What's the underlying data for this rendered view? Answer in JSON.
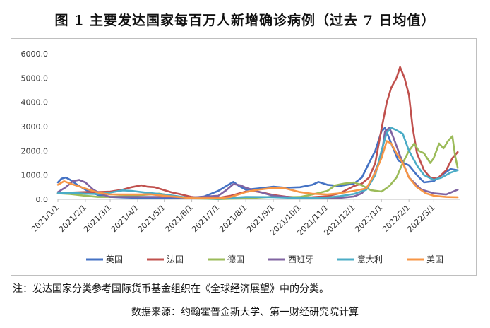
{
  "figure_title": "图 1  主要发达国家每百万人新增确诊病例（过去 7 日均值）",
  "note": "注：发达国家分类参考国际货币基金组织在《全球经济展望》中的分类。",
  "source": "数据来源：约翰霍普金斯大学、第一财经研究院计算",
  "chart_data": {
    "type": "line",
    "title": "",
    "xlabel": "",
    "ylabel": "",
    "ylim": [
      0,
      6000
    ],
    "yticks": [
      "0.0",
      "1000.0",
      "2000.0",
      "3000.0",
      "4000.0",
      "5000.0",
      "6000.0"
    ],
    "x_start": "2021-01-01",
    "x_end": "2022-03-31",
    "xticks": [
      "2021/1/1",
      "2021/2/1",
      "2021/3/1",
      "2021/4/1",
      "2021/5/1",
      "2021/6/1",
      "2021/7/1",
      "2021/8/1",
      "2021/9/1",
      "2021/10/1",
      "2021/11/1",
      "2021/12/1",
      "2022/1/1",
      "2022/2/1",
      "2022/3/1"
    ],
    "grid": false,
    "legend_position": "bottom",
    "series": [
      {
        "name": "英国",
        "color": "#4472c4",
        "points": [
          [
            "2021-01-01",
            700
          ],
          [
            "2021-01-05",
            850
          ],
          [
            "2021-01-10",
            900
          ],
          [
            "2021-01-15",
            800
          ],
          [
            "2021-01-22",
            620
          ],
          [
            "2021-02-01",
            400
          ],
          [
            "2021-02-15",
            180
          ],
          [
            "2021-03-01",
            100
          ],
          [
            "2021-03-15",
            80
          ],
          [
            "2021-04-01",
            60
          ],
          [
            "2021-05-01",
            40
          ],
          [
            "2021-06-01",
            60
          ],
          [
            "2021-06-15",
            120
          ],
          [
            "2021-07-01",
            350
          ],
          [
            "2021-07-10",
            550
          ],
          [
            "2021-07-18",
            720
          ],
          [
            "2021-07-24",
            560
          ],
          [
            "2021-08-01",
            400
          ],
          [
            "2021-08-15",
            450
          ],
          [
            "2021-09-01",
            520
          ],
          [
            "2021-09-15",
            480
          ],
          [
            "2021-10-01",
            500
          ],
          [
            "2021-10-15",
            600
          ],
          [
            "2021-10-22",
            720
          ],
          [
            "2021-11-01",
            600
          ],
          [
            "2021-11-15",
            550
          ],
          [
            "2021-12-01",
            650
          ],
          [
            "2021-12-10",
            900
          ],
          [
            "2021-12-18",
            1500
          ],
          [
            "2021-12-25",
            2000
          ],
          [
            "2022-01-01",
            2800
          ],
          [
            "2022-01-05",
            2950
          ],
          [
            "2022-01-12",
            2300
          ],
          [
            "2022-01-20",
            1600
          ],
          [
            "2022-02-01",
            1400
          ],
          [
            "2022-02-10",
            1000
          ],
          [
            "2022-02-18",
            700
          ],
          [
            "2022-03-01",
            750
          ],
          [
            "2022-03-10",
            1000
          ],
          [
            "2022-03-20",
            1250
          ],
          [
            "2022-03-28",
            1200
          ]
        ]
      },
      {
        "name": "法国",
        "color": "#c0504d",
        "points": [
          [
            "2021-01-01",
            250
          ],
          [
            "2021-01-15",
            280
          ],
          [
            "2021-02-01",
            300
          ],
          [
            "2021-02-15",
            300
          ],
          [
            "2021-03-01",
            320
          ],
          [
            "2021-03-15",
            400
          ],
          [
            "2021-03-25",
            500
          ],
          [
            "2021-04-05",
            580
          ],
          [
            "2021-04-12",
            520
          ],
          [
            "2021-04-20",
            500
          ],
          [
            "2021-05-01",
            380
          ],
          [
            "2021-05-10",
            280
          ],
          [
            "2021-05-18",
            220
          ],
          [
            "2021-06-01",
            100
          ],
          [
            "2021-06-15",
            50
          ],
          [
            "2021-07-01",
            60
          ],
          [
            "2021-07-15",
            150
          ],
          [
            "2021-08-01",
            320
          ],
          [
            "2021-08-10",
            340
          ],
          [
            "2021-08-20",
            280
          ],
          [
            "2021-09-01",
            180
          ],
          [
            "2021-09-15",
            110
          ],
          [
            "2021-10-01",
            80
          ],
          [
            "2021-10-15",
            90
          ],
          [
            "2021-11-01",
            130
          ],
          [
            "2021-11-15",
            250
          ],
          [
            "2021-12-01",
            550
          ],
          [
            "2021-12-10",
            650
          ],
          [
            "2021-12-18",
            900
          ],
          [
            "2021-12-25",
            1500
          ],
          [
            "2022-01-01",
            2900
          ],
          [
            "2022-01-07",
            4000
          ],
          [
            "2022-01-12",
            4600
          ],
          [
            "2022-01-18",
            5000
          ],
          [
            "2022-01-22",
            5450
          ],
          [
            "2022-01-27",
            5000
          ],
          [
            "2022-02-01",
            4300
          ],
          [
            "2022-02-05",
            3000
          ],
          [
            "2022-02-10",
            1900
          ],
          [
            "2022-02-18",
            1200
          ],
          [
            "2022-02-25",
            900
          ],
          [
            "2022-03-05",
            850
          ],
          [
            "2022-03-15",
            1200
          ],
          [
            "2022-03-22",
            1700
          ],
          [
            "2022-03-28",
            1950
          ]
        ]
      },
      {
        "name": "德国",
        "color": "#9bbb59",
        "points": [
          [
            "2021-01-01",
            250
          ],
          [
            "2021-01-15",
            220
          ],
          [
            "2021-02-01",
            150
          ],
          [
            "2021-02-15",
            100
          ],
          [
            "2021-03-01",
            100
          ],
          [
            "2021-03-15",
            130
          ],
          [
            "2021-04-01",
            170
          ],
          [
            "2021-04-15",
            200
          ],
          [
            "2021-04-25",
            240
          ],
          [
            "2021-05-10",
            140
          ],
          [
            "2021-06-01",
            40
          ],
          [
            "2021-07-01",
            10
          ],
          [
            "2021-08-01",
            40
          ],
          [
            "2021-09-01",
            110
          ],
          [
            "2021-09-15",
            90
          ],
          [
            "2021-10-01",
            100
          ],
          [
            "2021-10-15",
            200
          ],
          [
            "2021-11-01",
            350
          ],
          [
            "2021-11-10",
            580
          ],
          [
            "2021-11-20",
            650
          ],
          [
            "2021-12-01",
            700
          ],
          [
            "2021-12-10",
            580
          ],
          [
            "2021-12-20",
            380
          ],
          [
            "2022-01-01",
            320
          ],
          [
            "2022-01-10",
            550
          ],
          [
            "2022-01-18",
            900
          ],
          [
            "2022-01-25",
            1500
          ],
          [
            "2022-02-01",
            2000
          ],
          [
            "2022-02-07",
            2300
          ],
          [
            "2022-02-12",
            2000
          ],
          [
            "2022-02-18",
            1900
          ],
          [
            "2022-02-25",
            1500
          ],
          [
            "2022-03-01",
            1700
          ],
          [
            "2022-03-07",
            2300
          ],
          [
            "2022-03-12",
            2100
          ],
          [
            "2022-03-17",
            2400
          ],
          [
            "2022-03-22",
            2600
          ],
          [
            "2022-03-25",
            1800
          ],
          [
            "2022-03-28",
            1300
          ]
        ]
      },
      {
        "name": "西班牙",
        "color": "#8064a2",
        "points": [
          [
            "2021-01-01",
            300
          ],
          [
            "2021-01-10",
            500
          ],
          [
            "2021-01-18",
            750
          ],
          [
            "2021-01-25",
            800
          ],
          [
            "2021-02-01",
            700
          ],
          [
            "2021-02-10",
            400
          ],
          [
            "2021-02-20",
            200
          ],
          [
            "2021-03-01",
            100
          ],
          [
            "2021-04-01",
            100
          ],
          [
            "2021-05-01",
            100
          ],
          [
            "2021-06-01",
            80
          ],
          [
            "2021-07-01",
            150
          ],
          [
            "2021-07-10",
            380
          ],
          [
            "2021-07-18",
            630
          ],
          [
            "2021-07-26",
            580
          ],
          [
            "2021-08-01",
            480
          ],
          [
            "2021-08-15",
            320
          ],
          [
            "2021-09-01",
            150
          ],
          [
            "2021-10-01",
            50
          ],
          [
            "2021-11-01",
            40
          ],
          [
            "2021-11-15",
            60
          ],
          [
            "2021-12-01",
            120
          ],
          [
            "2021-12-10",
            250
          ],
          [
            "2021-12-20",
            700
          ],
          [
            "2022-01-01",
            1800
          ],
          [
            "2022-01-05",
            2800
          ],
          [
            "2022-01-10",
            2950
          ],
          [
            "2022-01-15",
            2500
          ],
          [
            "2022-01-22",
            1800
          ],
          [
            "2022-02-01",
            900
          ],
          [
            "2022-02-15",
            400
          ],
          [
            "2022-03-01",
            250
          ],
          [
            "2022-03-15",
            200
          ],
          [
            "2022-03-28",
            400
          ]
        ]
      },
      {
        "name": "意大利",
        "color": "#4bacc6",
        "points": [
          [
            "2021-01-01",
            250
          ],
          [
            "2021-01-15",
            280
          ],
          [
            "2021-02-01",
            230
          ],
          [
            "2021-02-15",
            220
          ],
          [
            "2021-03-01",
            280
          ],
          [
            "2021-03-15",
            370
          ],
          [
            "2021-03-25",
            350
          ],
          [
            "2021-04-10",
            280
          ],
          [
            "2021-05-01",
            200
          ],
          [
            "2021-06-01",
            50
          ],
          [
            "2021-07-01",
            20
          ],
          [
            "2021-07-15",
            60
          ],
          [
            "2021-08-01",
            100
          ],
          [
            "2021-09-01",
            90
          ],
          [
            "2021-10-01",
            50
          ],
          [
            "2021-11-01",
            80
          ],
          [
            "2021-11-15",
            130
          ],
          [
            "2021-12-01",
            220
          ],
          [
            "2021-12-15",
            400
          ],
          [
            "2021-12-25",
            1000
          ],
          [
            "2022-01-01",
            2000
          ],
          [
            "2022-01-07",
            2750
          ],
          [
            "2022-01-12",
            2950
          ],
          [
            "2022-01-18",
            2850
          ],
          [
            "2022-01-25",
            2700
          ],
          [
            "2022-02-01",
            2000
          ],
          [
            "2022-02-10",
            1400
          ],
          [
            "2022-02-18",
            1000
          ],
          [
            "2022-03-01",
            800
          ],
          [
            "2022-03-10",
            900
          ],
          [
            "2022-03-20",
            1100
          ],
          [
            "2022-03-28",
            1200
          ]
        ]
      },
      {
        "name": "美国",
        "color": "#f79646",
        "points": [
          [
            "2021-01-01",
            600
          ],
          [
            "2021-01-08",
            750
          ],
          [
            "2021-01-15",
            650
          ],
          [
            "2021-02-01",
            450
          ],
          [
            "2021-02-15",
            280
          ],
          [
            "2021-03-01",
            200
          ],
          [
            "2021-04-01",
            200
          ],
          [
            "2021-04-15",
            210
          ],
          [
            "2021-05-01",
            150
          ],
          [
            "2021-06-01",
            50
          ],
          [
            "2021-07-01",
            40
          ],
          [
            "2021-07-15",
            100
          ],
          [
            "2021-08-01",
            300
          ],
          [
            "2021-08-15",
            400
          ],
          [
            "2021-09-01",
            470
          ],
          [
            "2021-09-15",
            450
          ],
          [
            "2021-10-01",
            300
          ],
          [
            "2021-10-15",
            230
          ],
          [
            "2021-11-01",
            200
          ],
          [
            "2021-11-15",
            250
          ],
          [
            "2021-12-01",
            350
          ],
          [
            "2021-12-15",
            450
          ],
          [
            "2021-12-25",
            1100
          ],
          [
            "2022-01-01",
            1700
          ],
          [
            "2022-01-07",
            2400
          ],
          [
            "2022-01-12",
            2300
          ],
          [
            "2022-01-18",
            1900
          ],
          [
            "2022-01-25",
            1500
          ],
          [
            "2022-02-01",
            900
          ],
          [
            "2022-02-10",
            500
          ],
          [
            "2022-02-20",
            250
          ],
          [
            "2022-03-01",
            150
          ],
          [
            "2022-03-15",
            100
          ],
          [
            "2022-03-28",
            90
          ]
        ]
      }
    ]
  }
}
